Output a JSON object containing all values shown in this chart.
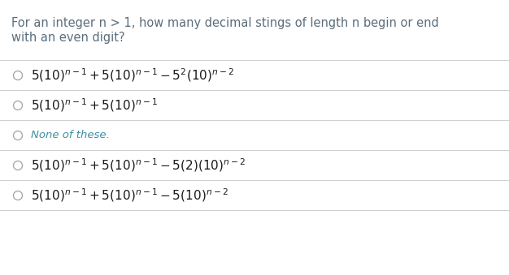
{
  "background_color": "#ffffff",
  "question_text_line1": "For an integer n > 1, how many decimal stings of length n begin or end",
  "question_text_line2": "with an even digit?",
  "question_color": "#5b6e7c",
  "options": [
    {
      "formula": "$5(10)^{n-1} + 5(10)^{n-1} - 5^2(10)^{n-2}$",
      "text_only": false
    },
    {
      "formula": "$5(10)^{n-1} + 5(10)^{n-1}$",
      "text_only": false
    },
    {
      "formula": "None of these.",
      "text_only": true
    },
    {
      "formula": "$5(10)^{n-1} + 5(10)^{n-1} - 5(2)(10)^{n-2}$",
      "text_only": false
    },
    {
      "formula": "$5(10)^{n-1} + 5(10)^{n-1} - 5(10)^{n-2}$",
      "text_only": false
    }
  ],
  "divider_color": "#d0d0d0",
  "circle_edge_color": "#aaaaaa",
  "formula_color": "#1a1a1a",
  "none_text_color": "#3d8fa0",
  "figsize": [
    6.26,
    3.39
  ],
  "dpi": 100
}
